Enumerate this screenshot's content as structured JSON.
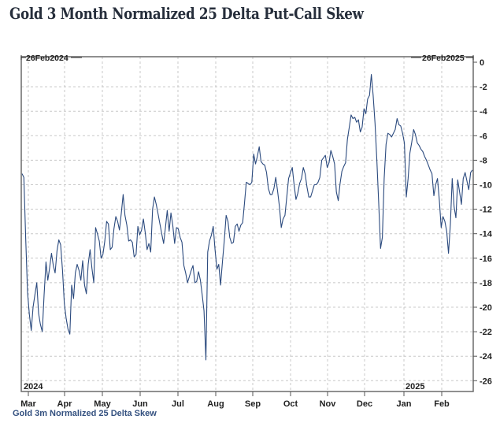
{
  "title": "Gold 3 Month  Normalized 25 Delta Put-Call Skew",
  "footer_label": "Gold 3m Normalized 25 Delta Skew",
  "chart_data": {
    "type": "line",
    "title": "Gold 3 Month  Normalized 25 Delta Put-Call Skew",
    "xlabel": "",
    "ylabel": "",
    "start_label": "26Feb2024",
    "end_label": "26Feb2025",
    "year_labels": [
      "2024",
      "2025"
    ],
    "x_ticks": [
      "Mar",
      "Apr",
      "May",
      "Jun",
      "Jul",
      "Aug",
      "Sep",
      "Oct",
      "Nov",
      "Dec",
      "Jan",
      "Feb"
    ],
    "y_ticks": [
      0,
      -2,
      -4,
      -6,
      -8,
      -10,
      -12,
      -14,
      -16,
      -18,
      -20,
      -22,
      -24,
      -26
    ],
    "ylim": [
      -27,
      0
    ],
    "grid": true,
    "axis_side": "right",
    "line_color": "#2b4a7e",
    "series": [
      {
        "name": "Gold 3m Normalized 25 Delta Skew",
        "x_months": [
          0.0,
          0.05,
          0.1,
          0.15,
          0.2,
          0.25,
          0.3,
          0.35,
          0.4,
          0.45,
          0.5,
          0.55,
          0.6,
          0.65,
          0.7,
          0.75,
          0.8,
          0.85,
          0.9,
          0.95,
          1.0,
          1.05,
          1.1,
          1.15,
          1.2,
          1.25,
          1.3,
          1.35,
          1.4,
          1.45,
          1.5,
          1.55,
          1.6,
          1.65,
          1.7,
          1.75,
          1.8,
          1.85,
          1.9,
          1.95,
          2.0,
          2.05,
          2.1,
          2.15,
          2.2,
          2.25,
          2.3,
          2.35,
          2.4,
          2.45,
          2.5,
          2.55,
          2.6,
          2.65,
          2.7,
          2.75,
          2.8,
          2.85,
          2.9,
          2.95,
          3.0,
          3.05,
          3.1,
          3.15,
          3.2,
          3.25,
          3.3,
          3.35,
          3.4,
          3.45,
          3.5,
          3.55,
          3.6,
          3.65,
          3.7,
          3.75,
          3.8,
          3.85,
          3.9,
          3.95,
          4.0,
          4.05,
          4.1,
          4.15,
          4.2,
          4.25,
          4.3,
          4.35,
          4.4,
          4.45,
          4.5,
          4.55,
          4.6,
          4.65,
          4.7,
          4.75,
          4.8,
          4.85,
          4.9,
          4.95,
          5.0,
          5.05,
          5.1,
          5.15,
          5.2,
          5.25,
          5.3,
          5.35,
          5.4,
          5.45,
          5.5,
          5.55,
          5.6,
          5.65,
          5.7,
          5.75,
          5.8,
          5.85,
          5.9,
          5.95,
          6.0,
          6.05,
          6.1,
          6.15,
          6.2,
          6.25,
          6.3,
          6.35,
          6.4,
          6.45,
          6.5,
          6.55,
          6.6,
          6.65,
          6.7,
          6.75,
          6.8,
          6.85,
          6.9,
          6.95,
          7.0,
          7.05,
          7.1,
          7.15,
          7.2,
          7.25,
          7.3,
          7.35,
          7.4,
          7.45,
          7.5,
          7.55,
          7.6,
          7.65,
          7.7,
          7.75,
          7.8,
          7.85,
          7.9,
          7.95,
          8.0,
          8.05,
          8.1,
          8.15,
          8.2,
          8.25,
          8.3,
          8.35,
          8.4,
          8.45,
          8.5,
          8.55,
          8.6,
          8.65,
          8.7,
          8.75,
          8.8,
          8.85,
          8.9,
          8.95,
          9.0,
          9.05,
          9.1,
          9.15,
          9.2,
          9.25,
          9.3,
          9.35,
          9.4,
          9.45,
          9.5,
          9.55,
          9.6,
          9.65,
          9.7,
          9.75,
          9.8,
          9.85,
          9.9,
          9.95,
          10.0,
          10.05,
          10.1,
          10.15,
          10.2,
          10.25,
          10.3,
          10.35,
          10.4,
          10.45,
          10.5,
          10.55,
          10.6,
          10.65,
          10.7,
          10.75,
          10.8,
          10.85,
          10.9,
          10.95,
          11.0,
          11.05,
          11.1,
          11.15,
          11.2,
          11.25,
          11.3,
          11.35,
          11.4,
          11.45,
          11.5,
          11.55,
          11.6,
          11.65,
          11.7,
          11.75,
          11.8,
          11.85
        ],
        "values": [
          -9.1,
          -9.4,
          -14.5,
          -18.8,
          -20.6,
          -21.9,
          -20.0,
          -19.0,
          -18.0,
          -20.5,
          -21.4,
          -22.0,
          -19.0,
          -16.3,
          -17.8,
          -16.8,
          -15.6,
          -16.6,
          -17.2,
          -15.4,
          -14.5,
          -14.9,
          -17.0,
          -19.7,
          -20.9,
          -21.8,
          -22.2,
          -18.2,
          -19.3,
          -17.2,
          -16.5,
          -17.0,
          -17.8,
          -16.2,
          -18.2,
          -18.9,
          -16.5,
          -15.3,
          -16.8,
          -18.0,
          -13.5,
          -14.0,
          -14.6,
          -16.0,
          -15.7,
          -14.6,
          -13.0,
          -13.2,
          -15.3,
          -15.1,
          -13.6,
          -12.6,
          -13.0,
          -13.7,
          -12.3,
          -10.8,
          -12.5,
          -13.3,
          -14.6,
          -14.5,
          -14.7,
          -15.9,
          -15.7,
          -13.4,
          -14.1,
          -13.7,
          -12.8,
          -13.9,
          -15.3,
          -14.8,
          -15.5,
          -12.0,
          -11.0,
          -11.6,
          -12.4,
          -13.2,
          -14.0,
          -14.8,
          -13.5,
          -12.1,
          -13.8,
          -12.3,
          -13.3,
          -14.8,
          -13.5,
          -13.6,
          -14.3,
          -14.7,
          -16.6,
          -17.2,
          -18.0,
          -17.5,
          -17.0,
          -16.6,
          -18.0,
          -17.9,
          -17.1,
          -17.8,
          -19.0,
          -20.3,
          -24.3,
          -15.5,
          -14.6,
          -14.1,
          -13.4,
          -15.3,
          -16.9,
          -16.5,
          -18.2,
          -16.3,
          -14.6,
          -12.5,
          -13.0,
          -14.3,
          -14.8,
          -14.7,
          -13.4,
          -13.2,
          -13.8,
          -13.3,
          -13.1,
          -11.5,
          -9.8,
          -9.9,
          -10.0,
          -9.8,
          -7.5,
          -8.3,
          -7.7,
          -6.9,
          -8.1,
          -8.3,
          -8.4,
          -9.0,
          -10.3,
          -10.8,
          -10.8,
          -10.3,
          -9.4,
          -10.5,
          -11.8,
          -13.5,
          -12.8,
          -12.5,
          -11.0,
          -9.5,
          -9.0,
          -8.6,
          -10.0,
          -11.2,
          -10.7,
          -9.9,
          -9.5,
          -8.6,
          -9.1,
          -10.2,
          -11.0,
          -11.0,
          -10.5,
          -10.0,
          -10.0,
          -9.8,
          -9.4,
          -8.0,
          -7.8,
          -7.6,
          -8.6,
          -8.2,
          -7.2,
          -7.7,
          -8.3,
          -10.6,
          -11.3,
          -9.9,
          -8.9,
          -8.5,
          -8.2,
          -6.3,
          -5.3,
          -4.3,
          -4.6,
          -4.5,
          -4.9,
          -4.7,
          -5.7,
          -5.3,
          -3.8,
          -4.2,
          -3.0,
          -2.7,
          -1.0,
          -2.7,
          -5.0,
          -8.0,
          -11.4,
          -15.2,
          -14.3,
          -9.5,
          -6.7,
          -5.8,
          -5.9,
          -6.1,
          -5.8,
          -5.5,
          -4.6,
          -5.1,
          -5.2,
          -5.8,
          -6.6,
          -11.0,
          -9.5,
          -7.4,
          -6.5,
          -5.5,
          -5.9,
          -6.6,
          -6.8,
          -7.1,
          -7.3,
          -7.7,
          -8.0,
          -8.4,
          -8.8,
          -9.1,
          -10.9,
          -10.0,
          -9.5,
          -11.3,
          -13.5,
          -12.6,
          -13.0,
          -13.8,
          -15.6,
          -13.2,
          -9.5,
          -11.8,
          -12.7,
          -9.6,
          -10.6,
          -11.6,
          -9.5,
          -9.0,
          -9.7,
          -10.4,
          -9.0,
          -8.8
        ]
      }
    ]
  }
}
